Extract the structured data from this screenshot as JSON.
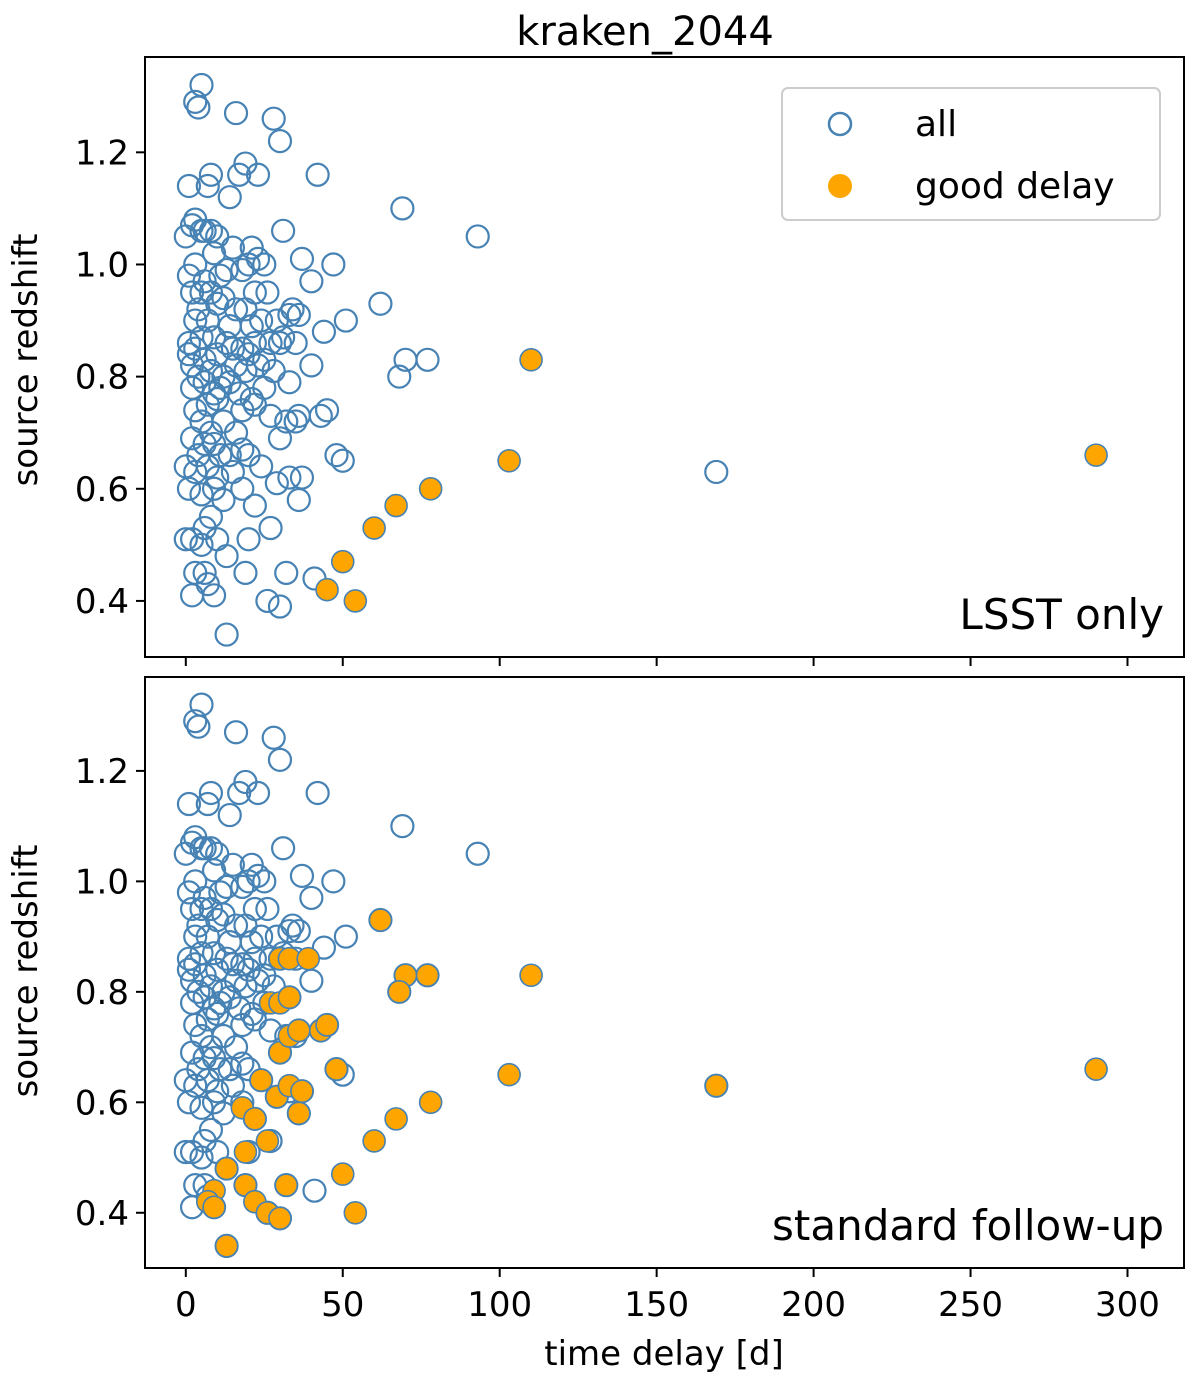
{
  "chart_data": {
    "type": "scatter",
    "title": "kraken_2044",
    "xlabel": "time delay [d]",
    "ylabel": "source redshift",
    "xlim": [
      -13,
      318
    ],
    "ylim": [
      0.3,
      1.37
    ],
    "xticks": [
      0,
      50,
      100,
      150,
      200,
      250,
      300
    ],
    "yticks": [
      0.4,
      0.6,
      0.8,
      1.0,
      1.2
    ],
    "legend": {
      "position": "top-right",
      "all_label": "all",
      "good_label": "good delay"
    },
    "colors": {
      "all": "#4682b4",
      "good": "#ffa500",
      "good_edge": "#4682b4",
      "axes": "#000000"
    },
    "all_points": [
      [
        5,
        1.32
      ],
      [
        3,
        1.29
      ],
      [
        4,
        1.28
      ],
      [
        16,
        1.27
      ],
      [
        28,
        1.26
      ],
      [
        30,
        1.22
      ],
      [
        14,
        1.12
      ],
      [
        1,
        1.14
      ],
      [
        19,
        1.18
      ],
      [
        17,
        1.16
      ],
      [
        23,
        1.16
      ],
      [
        8,
        1.16
      ],
      [
        42,
        1.16
      ],
      [
        7,
        1.14
      ],
      [
        69,
        1.1
      ],
      [
        93,
        1.05
      ],
      [
        2,
        1.07
      ],
      [
        3,
        1.08
      ],
      [
        5,
        1.06
      ],
      [
        6,
        1.06
      ],
      [
        8,
        1.06
      ],
      [
        10,
        1.05
      ],
      [
        0,
        1.05
      ],
      [
        15,
        1.03
      ],
      [
        21,
        1.03
      ],
      [
        31,
        1.06
      ],
      [
        47,
        1.0
      ],
      [
        37,
        1.01
      ],
      [
        3,
        1.0
      ],
      [
        9,
        1.02
      ],
      [
        13,
        0.99
      ],
      [
        20,
        1.0
      ],
      [
        23,
        1.01
      ],
      [
        25,
        1.0
      ],
      [
        1,
        0.98
      ],
      [
        6,
        0.97
      ],
      [
        11,
        0.98
      ],
      [
        18,
        0.99
      ],
      [
        40,
        0.97
      ],
      [
        2,
        0.95
      ],
      [
        5,
        0.95
      ],
      [
        8,
        0.95
      ],
      [
        12,
        0.94
      ],
      [
        22,
        0.95
      ],
      [
        26,
        0.95
      ],
      [
        4,
        0.92
      ],
      [
        10,
        0.93
      ],
      [
        16,
        0.92
      ],
      [
        19,
        0.92
      ],
      [
        34,
        0.92
      ],
      [
        62,
        0.93
      ],
      [
        51,
        0.9
      ],
      [
        3,
        0.9
      ],
      [
        7,
        0.9
      ],
      [
        14,
        0.89
      ],
      [
        21,
        0.89
      ],
      [
        24,
        0.9
      ],
      [
        29,
        0.9
      ],
      [
        33,
        0.91
      ],
      [
        36,
        0.91
      ],
      [
        1,
        0.86
      ],
      [
        5,
        0.87
      ],
      [
        9,
        0.87
      ],
      [
        13,
        0.86
      ],
      [
        18,
        0.85
      ],
      [
        22,
        0.86
      ],
      [
        27,
        0.86
      ],
      [
        31,
        0.87
      ],
      [
        35,
        0.86
      ],
      [
        44,
        0.88
      ],
      [
        1,
        0.84
      ],
      [
        3,
        0.85
      ],
      [
        6,
        0.83
      ],
      [
        10,
        0.84
      ],
      [
        15,
        0.85
      ],
      [
        20,
        0.84
      ],
      [
        25,
        0.83
      ],
      [
        30,
        0.86
      ],
      [
        2,
        0.82
      ],
      [
        4,
        0.8
      ],
      [
        8,
        0.81
      ],
      [
        12,
        0.8
      ],
      [
        16,
        0.82
      ],
      [
        19,
        0.81
      ],
      [
        23,
        0.82
      ],
      [
        28,
        0.81
      ],
      [
        40,
        0.82
      ],
      [
        70,
        0.83
      ],
      [
        77,
        0.83
      ],
      [
        68,
        0.8
      ],
      [
        2,
        0.78
      ],
      [
        6,
        0.79
      ],
      [
        9,
        0.77
      ],
      [
        11,
        0.78
      ],
      [
        14,
        0.79
      ],
      [
        17,
        0.77
      ],
      [
        21,
        0.76
      ],
      [
        25,
        0.78
      ],
      [
        33,
        0.79
      ],
      [
        3,
        0.74
      ],
      [
        7,
        0.75
      ],
      [
        10,
        0.76
      ],
      [
        18,
        0.74
      ],
      [
        22,
        0.75
      ],
      [
        27,
        0.73
      ],
      [
        35,
        0.72
      ],
      [
        45,
        0.74
      ],
      [
        43,
        0.73
      ],
      [
        5,
        0.72
      ],
      [
        8,
        0.7
      ],
      [
        12,
        0.72
      ],
      [
        2,
        0.69
      ],
      [
        6,
        0.68
      ],
      [
        9,
        0.68
      ],
      [
        16,
        0.7
      ],
      [
        30,
        0.69
      ],
      [
        32,
        0.72
      ],
      [
        36,
        0.73
      ],
      [
        4,
        0.66
      ],
      [
        11,
        0.66
      ],
      [
        14,
        0.66
      ],
      [
        18,
        0.67
      ],
      [
        20,
        0.66
      ],
      [
        48,
        0.66
      ],
      [
        50,
        0.65
      ],
      [
        0,
        0.64
      ],
      [
        3,
        0.63
      ],
      [
        7,
        0.64
      ],
      [
        10,
        0.62
      ],
      [
        15,
        0.63
      ],
      [
        24,
        0.64
      ],
      [
        29,
        0.61
      ],
      [
        33,
        0.62
      ],
      [
        37,
        0.62
      ],
      [
        169,
        0.63
      ],
      [
        36,
        0.58
      ],
      [
        1,
        0.6
      ],
      [
        5,
        0.59
      ],
      [
        9,
        0.6
      ],
      [
        12,
        0.58
      ],
      [
        18,
        0.6
      ],
      [
        22,
        0.57
      ],
      [
        8,
        0.55
      ],
      [
        6,
        0.53
      ],
      [
        20,
        0.51
      ],
      [
        27,
        0.53
      ],
      [
        0,
        0.51
      ],
      [
        2,
        0.51
      ],
      [
        5,
        0.5
      ],
      [
        10,
        0.51
      ],
      [
        13,
        0.48
      ],
      [
        3,
        0.45
      ],
      [
        6,
        0.45
      ],
      [
        19,
        0.45
      ],
      [
        32,
        0.45
      ],
      [
        41,
        0.44
      ],
      [
        2,
        0.41
      ],
      [
        7,
        0.43
      ],
      [
        9,
        0.41
      ],
      [
        26,
        0.4
      ],
      [
        30,
        0.39
      ],
      [
        13,
        0.34
      ]
    ],
    "panels": [
      {
        "annotation": "LSST only",
        "good_points": [
          [
            110,
            0.83
          ],
          [
            103,
            0.65
          ],
          [
            78,
            0.6
          ],
          [
            67,
            0.57
          ],
          [
            60,
            0.53
          ],
          [
            50,
            0.47
          ],
          [
            45,
            0.42
          ],
          [
            54,
            0.4
          ],
          [
            290,
            0.66
          ]
        ]
      },
      {
        "annotation": "standard follow-up",
        "good_points": [
          [
            110,
            0.83
          ],
          [
            103,
            0.65
          ],
          [
            78,
            0.6
          ],
          [
            67,
            0.57
          ],
          [
            60,
            0.53
          ],
          [
            50,
            0.47
          ],
          [
            54,
            0.4
          ],
          [
            290,
            0.66
          ],
          [
            169,
            0.63
          ],
          [
            62,
            0.93
          ],
          [
            70,
            0.83
          ],
          [
            77,
            0.83
          ],
          [
            68,
            0.8
          ],
          [
            30,
            0.86
          ],
          [
            33,
            0.86
          ],
          [
            39,
            0.86
          ],
          [
            27,
            0.78
          ],
          [
            30,
            0.78
          ],
          [
            33,
            0.79
          ],
          [
            30,
            0.69
          ],
          [
            33,
            0.72
          ],
          [
            36,
            0.73
          ],
          [
            43,
            0.73
          ],
          [
            45,
            0.74
          ],
          [
            48,
            0.66
          ],
          [
            24,
            0.64
          ],
          [
            29,
            0.61
          ],
          [
            33,
            0.63
          ],
          [
            37,
            0.62
          ],
          [
            36,
            0.58
          ],
          [
            18,
            0.59
          ],
          [
            22,
            0.57
          ],
          [
            26,
            0.53
          ],
          [
            19,
            0.51
          ],
          [
            13,
            0.48
          ],
          [
            19,
            0.45
          ],
          [
            9,
            0.44
          ],
          [
            7,
            0.42
          ],
          [
            9,
            0.41
          ],
          [
            22,
            0.42
          ],
          [
            26,
            0.4
          ],
          [
            30,
            0.39
          ],
          [
            32,
            0.45
          ],
          [
            13,
            0.34
          ]
        ]
      }
    ]
  }
}
